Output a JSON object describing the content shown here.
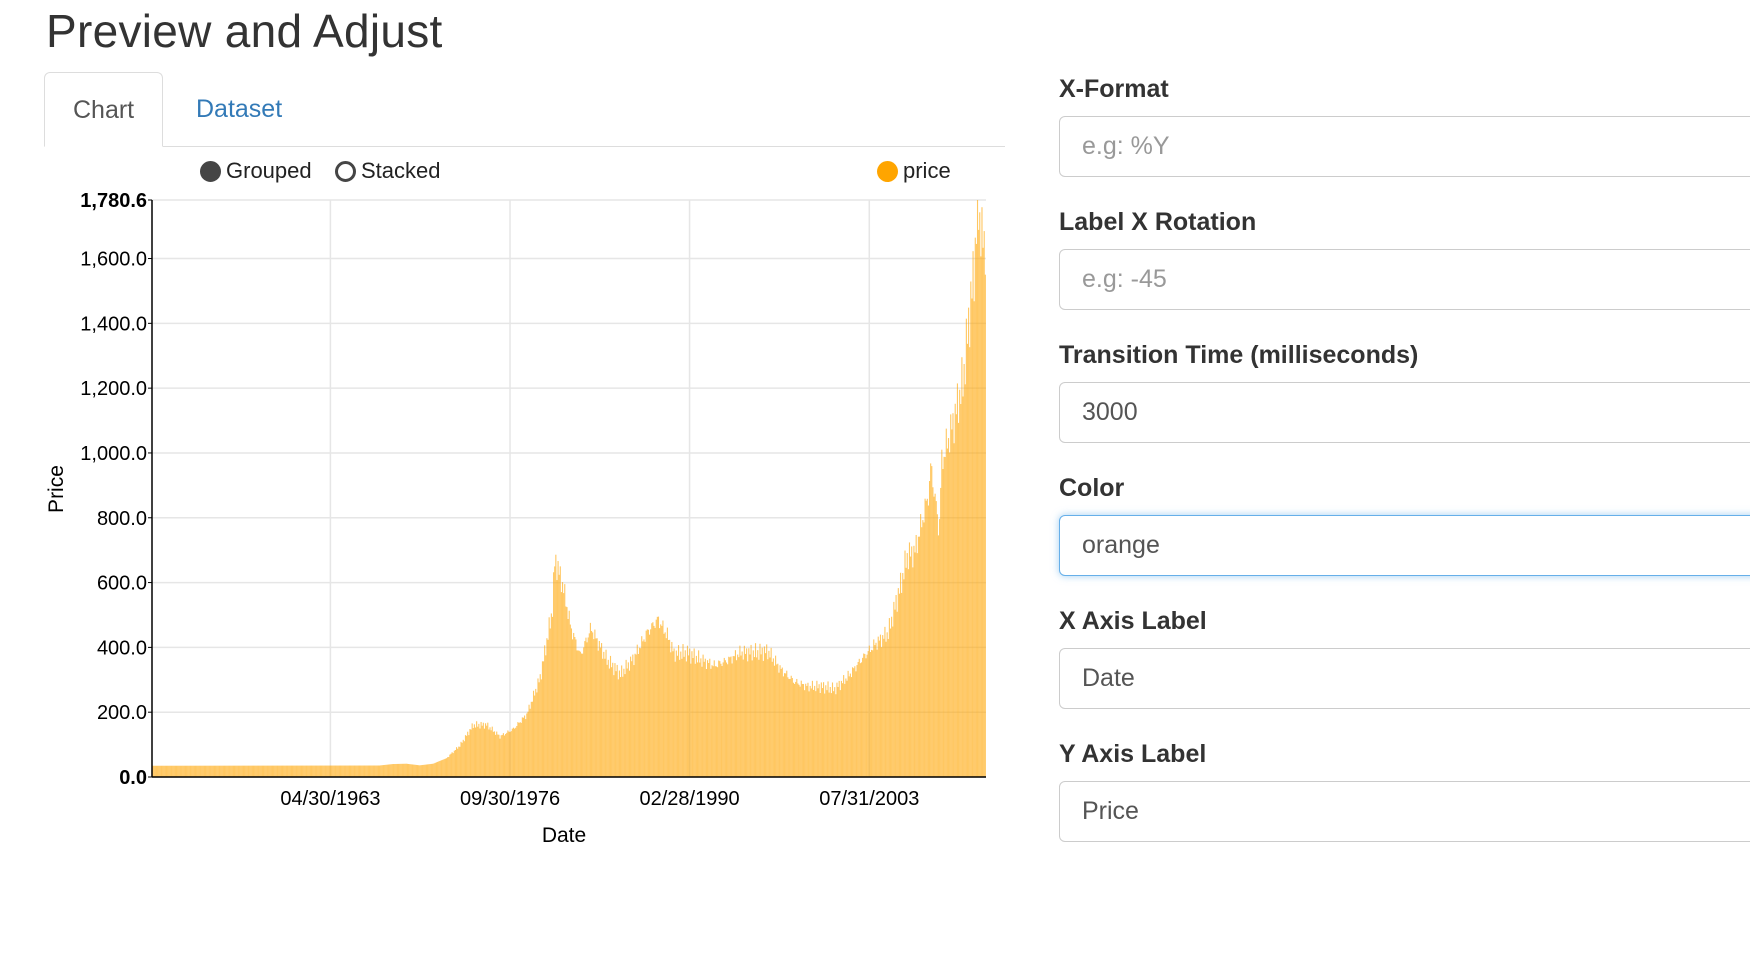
{
  "page": {
    "title": "Preview and Adjust"
  },
  "tabs": [
    {
      "label": "Chart",
      "active": true
    },
    {
      "label": "Dataset",
      "active": false
    }
  ],
  "chart_controls": {
    "grouped_label": "Grouped",
    "stacked_label": "Stacked",
    "selected": "Grouped"
  },
  "form": {
    "x_format": {
      "label": "X-Format",
      "value": "",
      "placeholder": "e.g: %Y"
    },
    "label_x_rotation": {
      "label": "Label X Rotation",
      "value": "",
      "placeholder": "e.g: -45"
    },
    "transition_time": {
      "label": "Transition Time (milliseconds)",
      "value": "3000",
      "placeholder": ""
    },
    "color": {
      "label": "Color",
      "value": "orange",
      "placeholder": ""
    },
    "x_axis_label": {
      "label": "X Axis Label",
      "value": "Date",
      "placeholder": ""
    },
    "y_axis_label": {
      "label": "Y Axis Label",
      "value": "Price",
      "placeholder": ""
    }
  },
  "colors": {
    "series": "#ffa500",
    "link": "#337ab7",
    "focus_border": "#66afe9"
  },
  "chart_data": {
    "type": "bar",
    "title": "",
    "xlabel": "Date",
    "ylabel": "Price",
    "ylim": [
      0,
      1780.6
    ],
    "yticks": [
      "0.0",
      "200.0",
      "400.0",
      "600.0",
      "800.0",
      "1,000.0",
      "1,200.0",
      "1,400.0",
      "1,600.0",
      "1,780.6"
    ],
    "xticks": [
      "04/30/1963",
      "09/30/1976",
      "02/28/1990",
      "07/31/2003"
    ],
    "x_range": [
      1950,
      2012.3
    ],
    "grid": true,
    "legend": "top-right",
    "series": [
      {
        "name": "price",
        "color": "#ffa500",
        "points": [
          [
            1950,
            34.7
          ],
          [
            1960,
            35.2
          ],
          [
            1967,
            35.5
          ],
          [
            1968,
            40
          ],
          [
            1969,
            41
          ],
          [
            1970,
            36
          ],
          [
            1971,
            41
          ],
          [
            1972,
            58
          ],
          [
            1973,
            97
          ],
          [
            1974,
            160
          ],
          [
            1975,
            161
          ],
          [
            1976,
            125
          ],
          [
            1977,
            148
          ],
          [
            1978,
            193
          ],
          [
            1979,
            306
          ],
          [
            1979.9,
            512
          ],
          [
            1980.1,
            675
          ],
          [
            1980.7,
            590
          ],
          [
            1981.3,
            460
          ],
          [
            1982,
            375
          ],
          [
            1982.8,
            460
          ],
          [
            1983.2,
            425
          ],
          [
            1984,
            361
          ],
          [
            1985,
            317
          ],
          [
            1986,
            368
          ],
          [
            1987,
            447
          ],
          [
            1987.8,
            487
          ],
          [
            1988.5,
            437
          ],
          [
            1989,
            381
          ],
          [
            1990,
            383
          ],
          [
            1991,
            362
          ],
          [
            1992,
            344
          ],
          [
            1993,
            360
          ],
          [
            1994,
            384
          ],
          [
            1995,
            384
          ],
          [
            1996,
            388
          ],
          [
            1997,
            331
          ],
          [
            1998,
            294
          ],
          [
            1999,
            279
          ],
          [
            2000,
            279
          ],
          [
            2001,
            271
          ],
          [
            2002,
            310
          ],
          [
            2003,
            363
          ],
          [
            2004,
            409
          ],
          [
            2005,
            445
          ],
          [
            2006,
            604
          ],
          [
            2006.4,
            680
          ],
          [
            2007,
            697
          ],
          [
            2008,
            872
          ],
          [
            2008.2,
            960
          ],
          [
            2008.8,
            760
          ],
          [
            2009,
            972
          ],
          [
            2009.9,
            1100
          ],
          [
            2010.6,
            1225
          ],
          [
            2011,
            1400
          ],
          [
            2011.4,
            1560
          ],
          [
            2011.7,
            1780.6
          ],
          [
            2012,
            1657
          ],
          [
            2012.3,
            1650
          ]
        ]
      }
    ]
  }
}
